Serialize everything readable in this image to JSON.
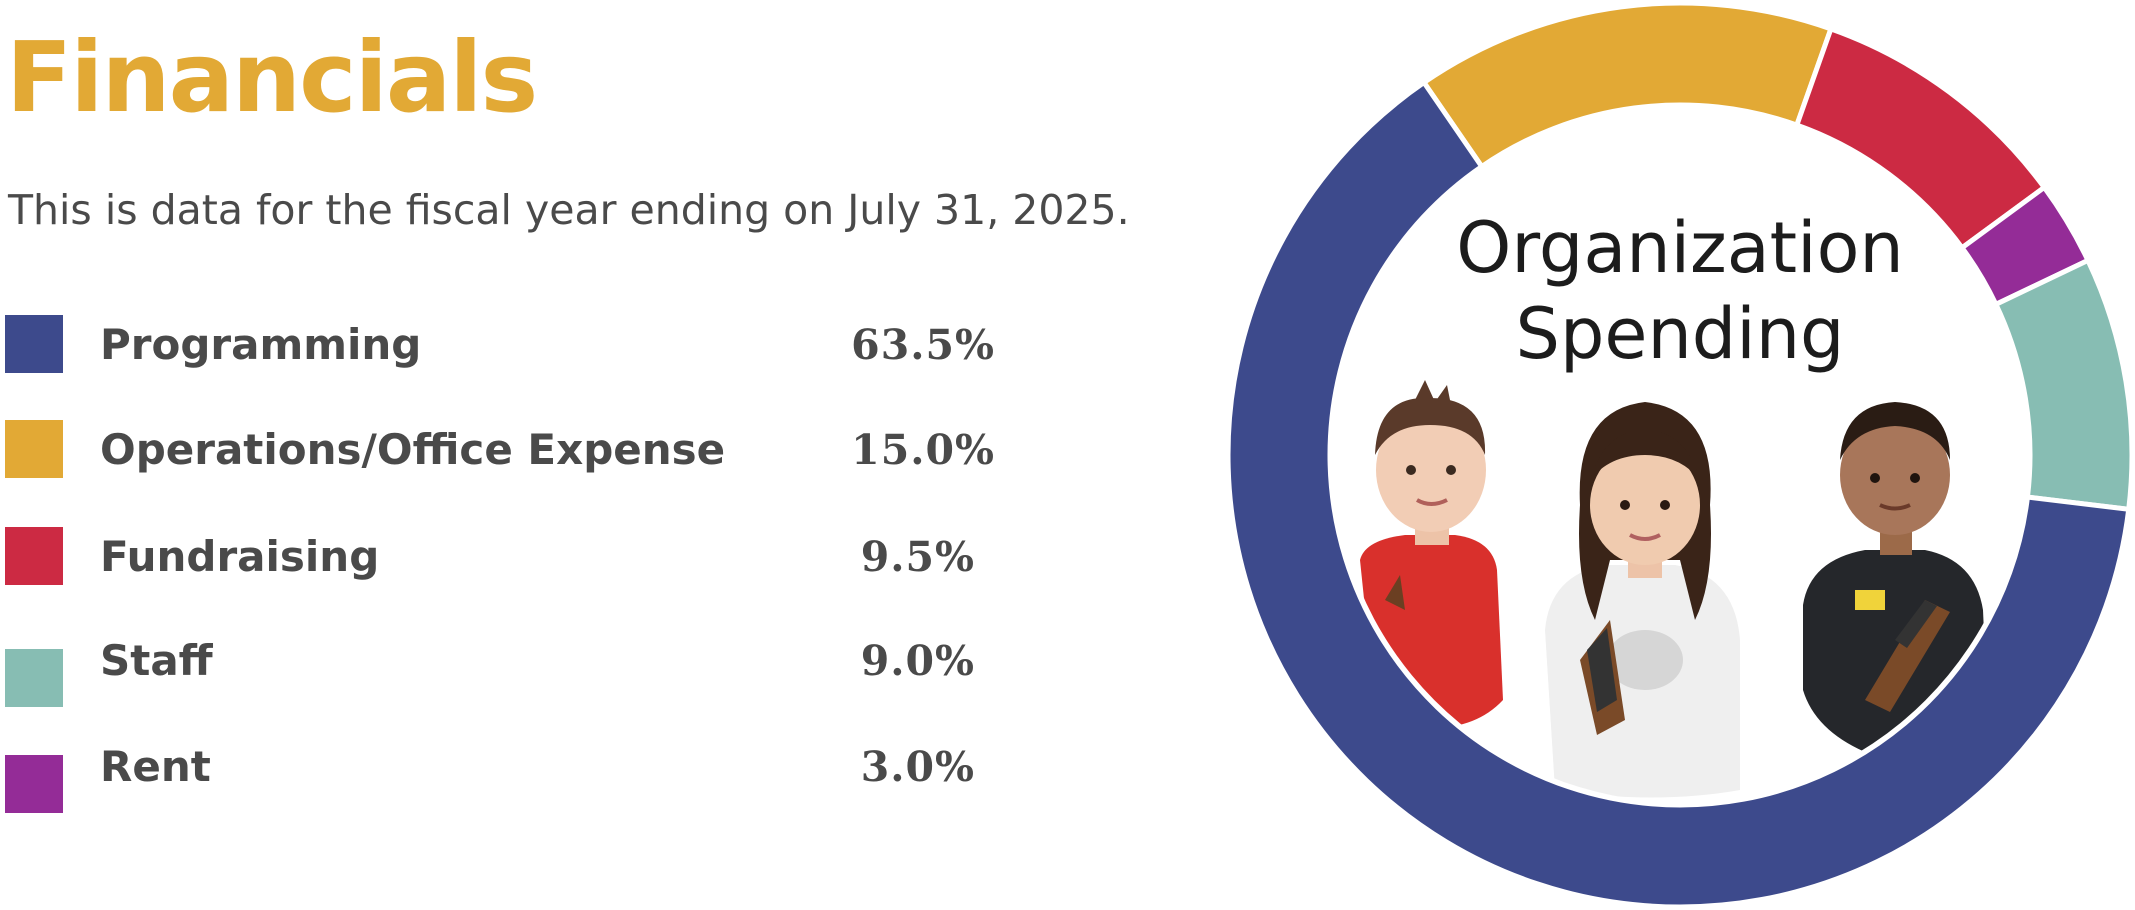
{
  "header": {
    "title": "Financials",
    "subtitle": "This is data for the fiscal year ending on July 31, 2025."
  },
  "chart_data": {
    "type": "pie",
    "variant": "donut",
    "title": "Organization Spending",
    "center_label_lines": [
      "Organization",
      "Spending"
    ],
    "categories": [
      "Programming",
      "Operations/Office Expense",
      "Fundraising",
      "Staff",
      "Rent"
    ],
    "values": [
      63.5,
      15.0,
      9.5,
      9.0,
      3.0
    ],
    "value_labels": [
      "63.5%",
      "15.0%",
      "9.5%",
      "9.0%",
      "3.0%"
    ],
    "colors": [
      "#3D4A8C",
      "#E2A935",
      "#CC2A43",
      "#87BDB3",
      "#942C97"
    ],
    "ring_order": [
      "Operations/Office Expense",
      "Fundraising",
      "Rent",
      "Staff",
      "Programming"
    ],
    "legend_position": "left",
    "center_image": "photo of three children (boy in red sweater, girl in white sweater, boy in black hoodie) holding wooden crafts"
  }
}
